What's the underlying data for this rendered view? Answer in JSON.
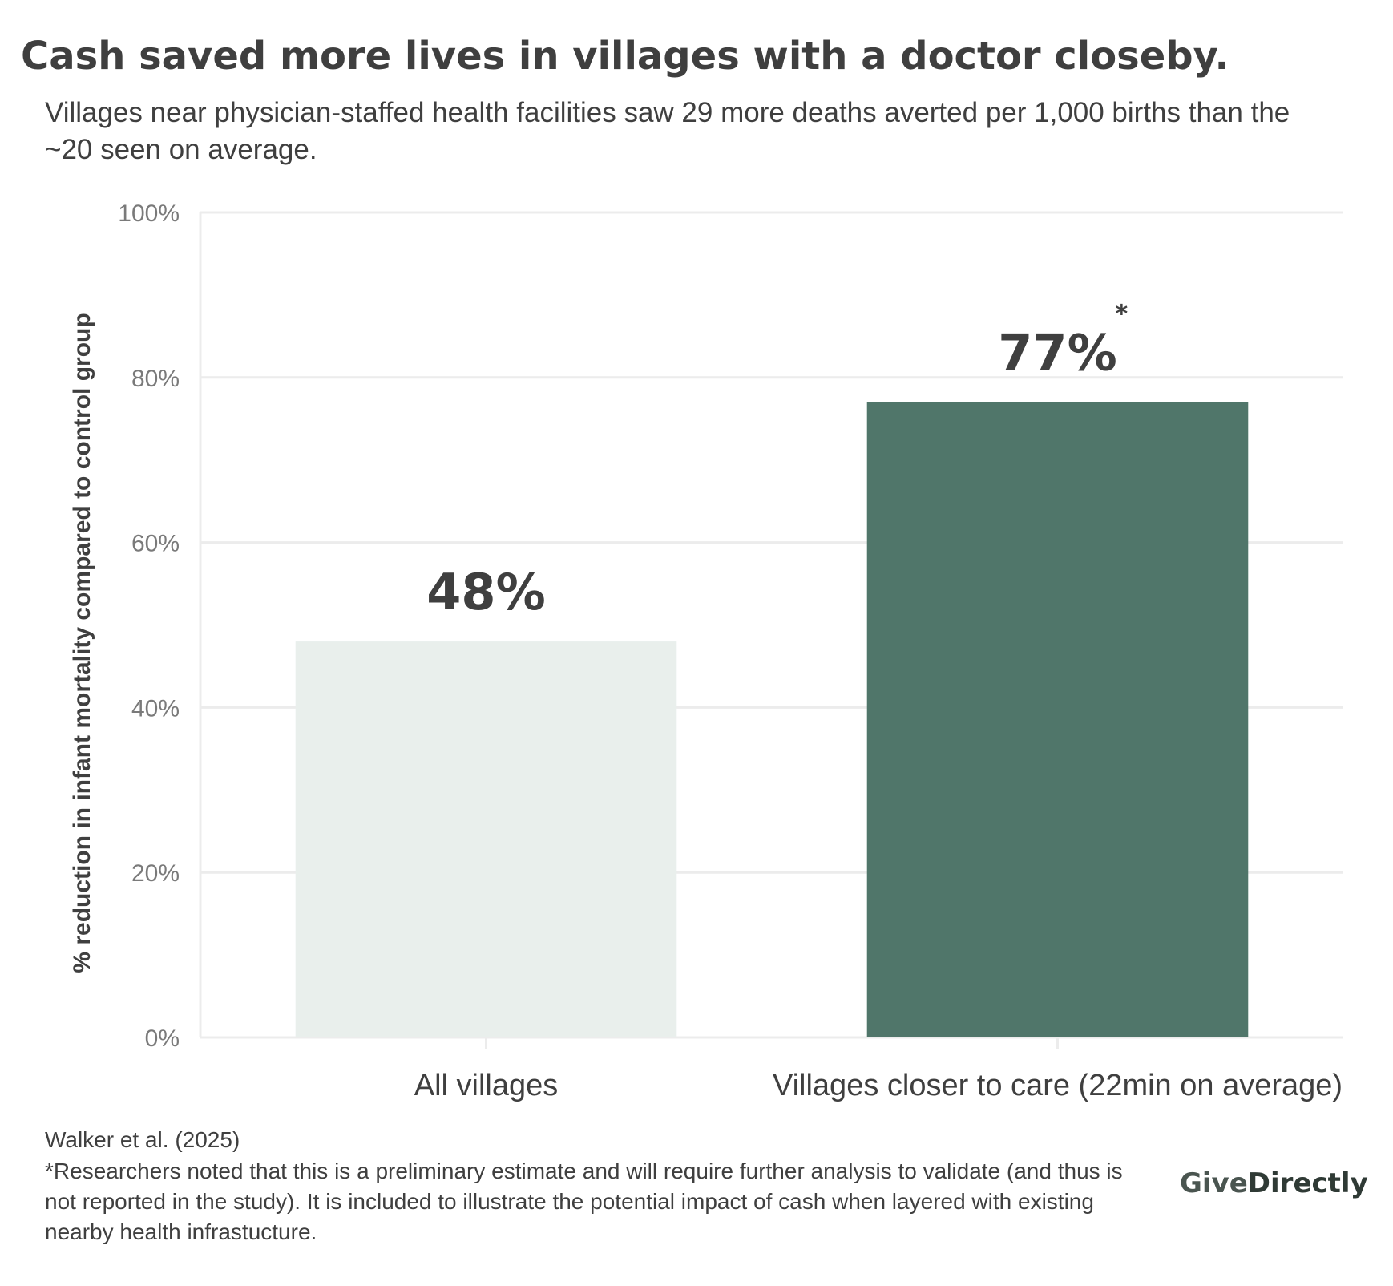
{
  "header": {
    "title": "Cash saved more lives in villages with a doctor closeby.",
    "subtitle": "Villages near physician-staffed health facilities saw 29 more deaths averted per 1,000 births than the ~20 seen on average."
  },
  "chart_data": {
    "type": "bar",
    "categories": [
      "All villages",
      "Villages closer to care (22min on average)"
    ],
    "values": [
      48,
      77
    ],
    "value_labels": [
      "48%",
      "77%"
    ],
    "value_label_markers": [
      "",
      "*"
    ],
    "ylabel": "% reduction in infant mortality compared to control group",
    "xlabel": "",
    "ylim": [
      0,
      100
    ],
    "yticks": [
      0,
      20,
      40,
      60,
      80,
      100
    ],
    "ytick_labels": [
      "0%",
      "20%",
      "40%",
      "60%",
      "80%",
      "100%"
    ],
    "grid": true,
    "legend": "none",
    "bar_colors": [
      "#e9efec",
      "#50766a"
    ]
  },
  "footer": {
    "source": "Walker et al. (2025)",
    "footnote": "*Researchers noted that this is a preliminary estimate and will require further analysis to validate (and thus is not reported in the study). It is included to illustrate the potential impact of cash when layered with existing nearby health infrastucture.",
    "logo_part1": "Give",
    "logo_part2": "Directly"
  },
  "colors": {
    "text": "#3f3f3f",
    "tick_text": "#7a7a7a",
    "grid": "#ececec"
  }
}
